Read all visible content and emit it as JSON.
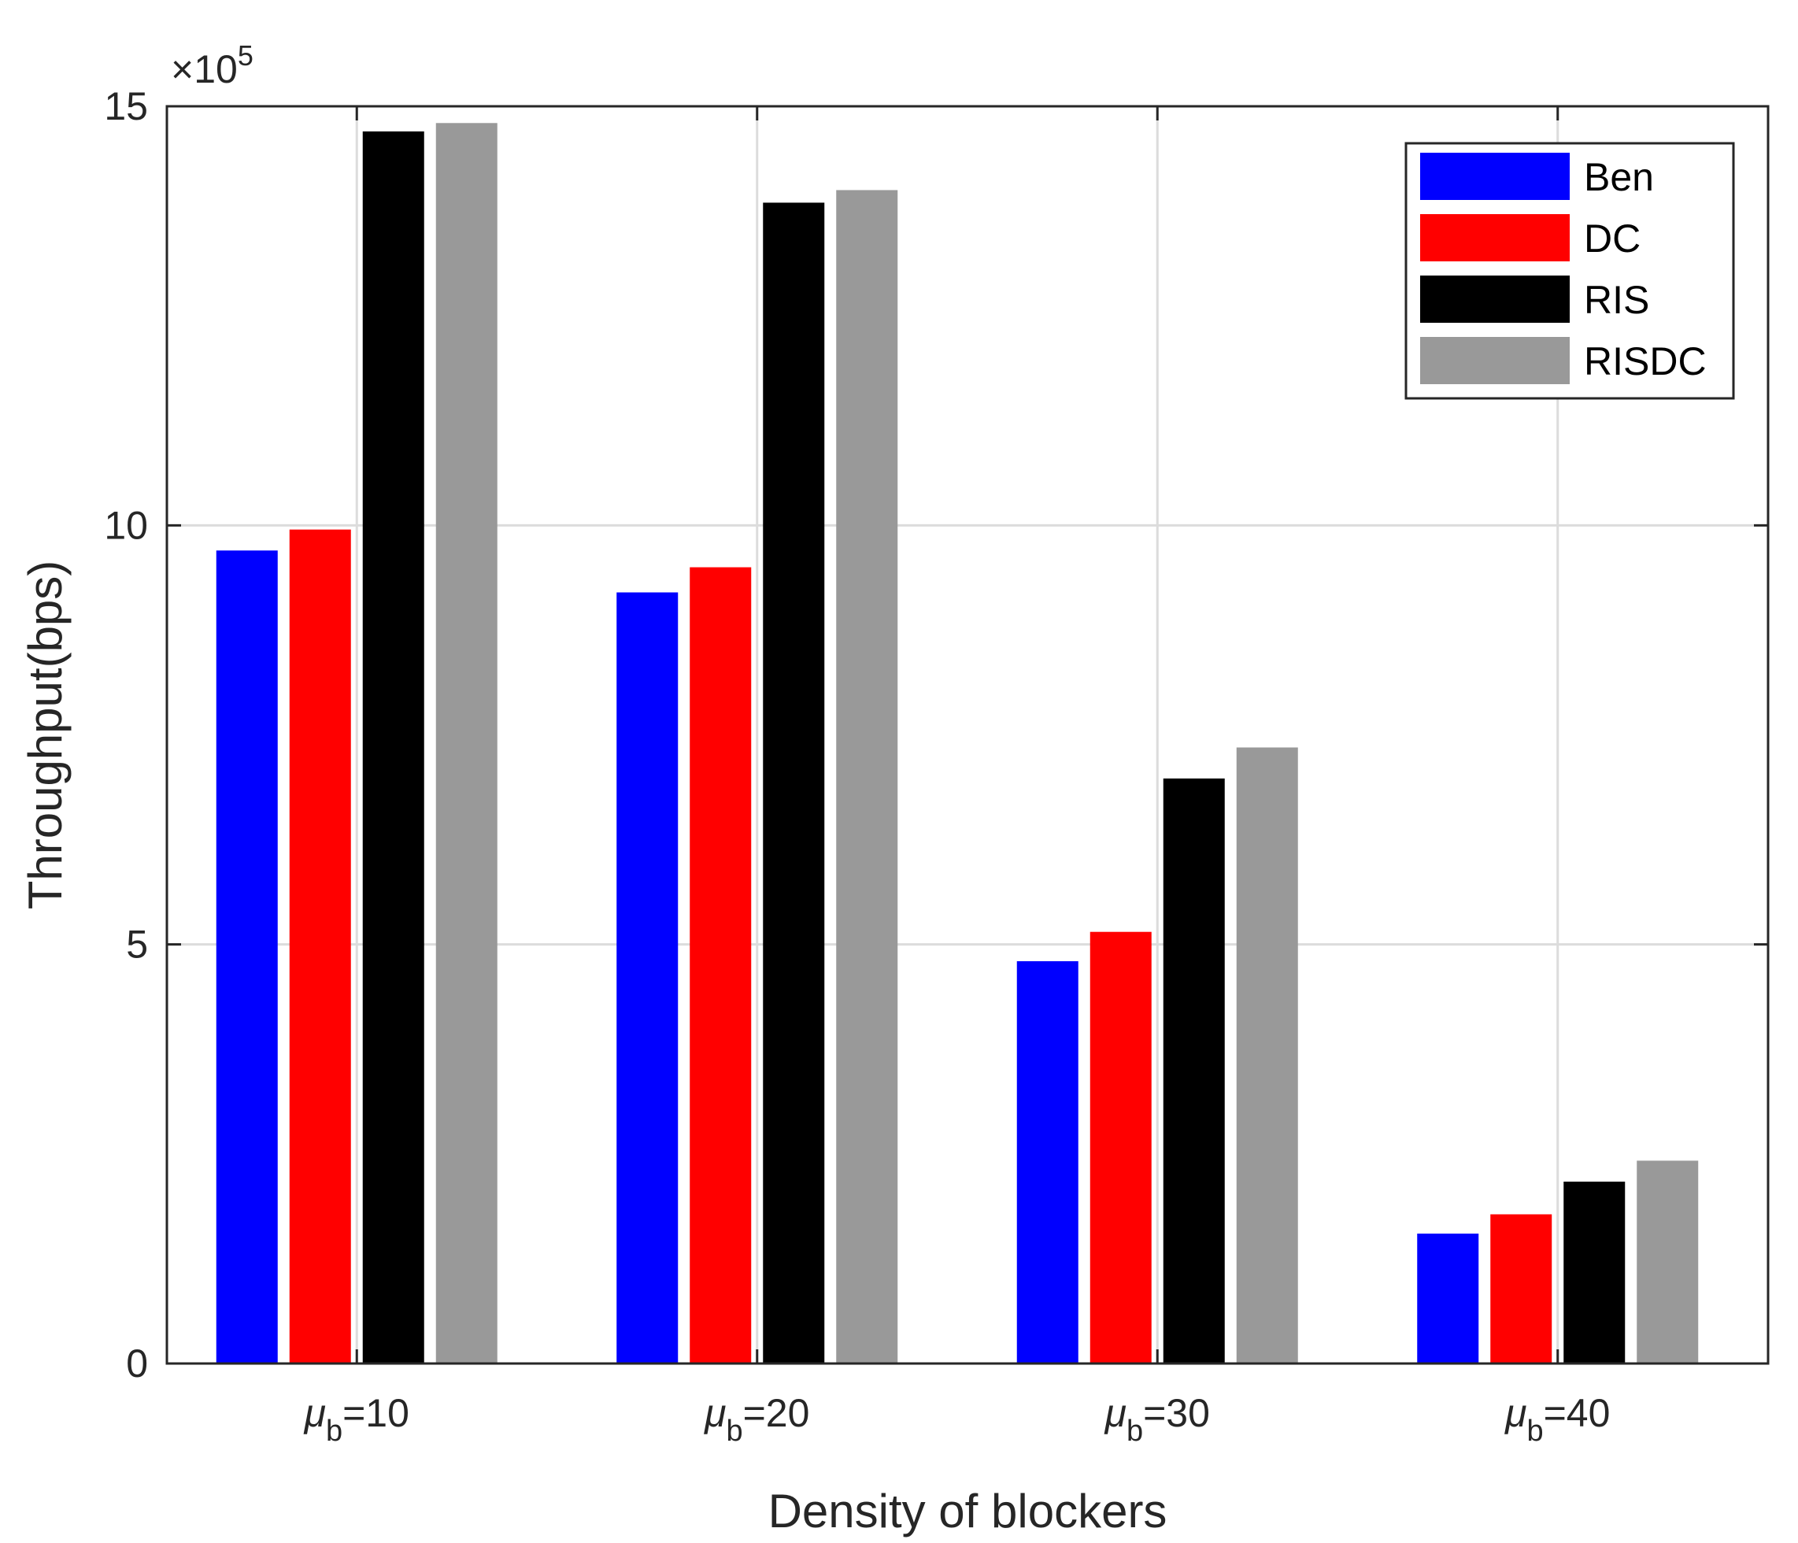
{
  "chart_data": {
    "type": "bar",
    "title": "",
    "xlabel": "Density of blockers",
    "ylabel": "Throughput(bps)",
    "y_exponent_label": "×10",
    "y_exponent_power": "5",
    "ylim": [
      0,
      15
    ],
    "yticks": [
      0,
      5,
      10,
      15
    ],
    "ytick_labels": [
      "0",
      "5",
      "10",
      "15"
    ],
    "grid": true,
    "legend_position": "top-right",
    "categories": [
      {
        "symbol": "μ",
        "sub": "b",
        "suffix": "=10"
      },
      {
        "symbol": "μ",
        "sub": "b",
        "suffix": "=20"
      },
      {
        "symbol": "μ",
        "sub": "b",
        "suffix": "=30"
      },
      {
        "symbol": "μ",
        "sub": "b",
        "suffix": "=40"
      }
    ],
    "series": [
      {
        "name": "Ben",
        "color": "#0000ff",
        "values": [
          9.7,
          9.2,
          4.8,
          1.55
        ]
      },
      {
        "name": "DC",
        "color": "#ff0000",
        "values": [
          9.95,
          9.5,
          5.15,
          1.78
        ]
      },
      {
        "name": "RIS",
        "color": "#000000",
        "values": [
          14.7,
          13.85,
          6.98,
          2.17
        ]
      },
      {
        "name": "RISDC",
        "color": "#999999",
        "values": [
          14.8,
          14.0,
          7.35,
          2.42
        ]
      }
    ]
  }
}
